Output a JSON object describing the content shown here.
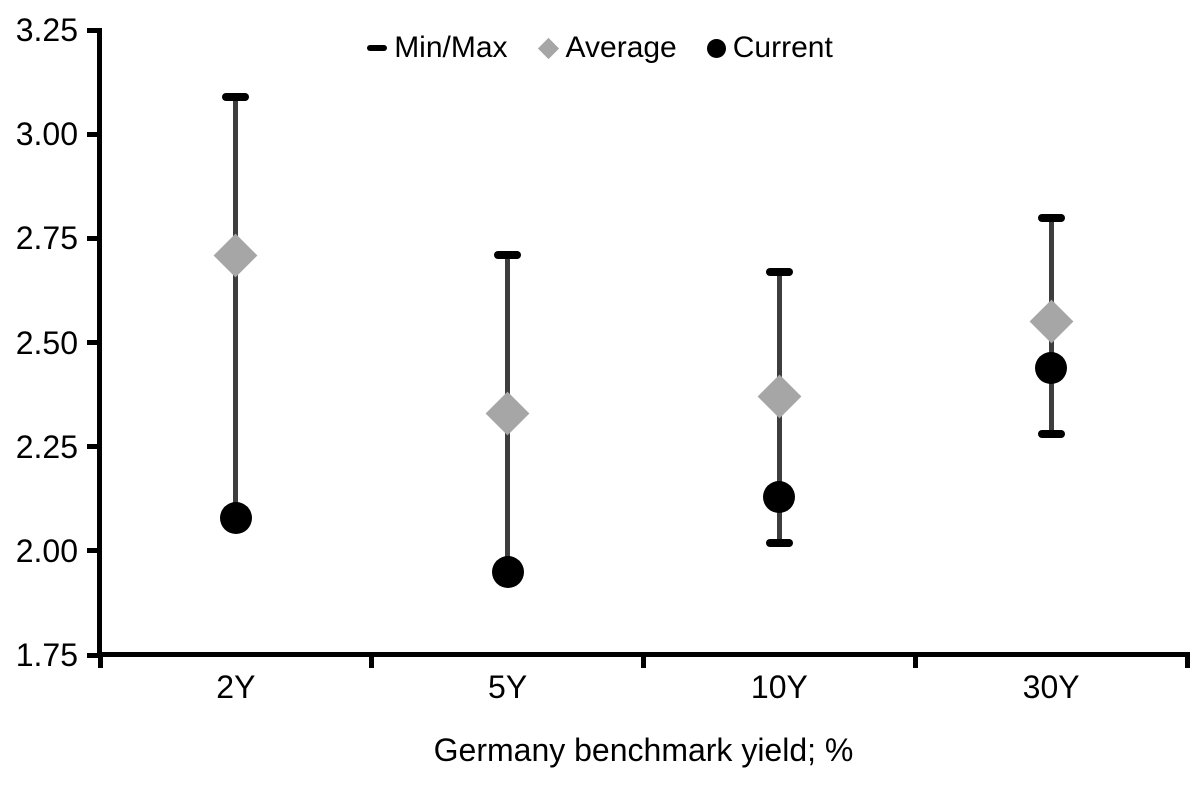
{
  "chart_data": {
    "type": "scatter",
    "title": "",
    "xlabel": "Germany benchmark yield; %",
    "ylabel": "",
    "categories": [
      "2Y",
      "5Y",
      "10Y",
      "30Y"
    ],
    "series": [
      {
        "name": "Min/Max",
        "role": "range",
        "min": [
          2.08,
          1.95,
          2.02,
          2.28
        ],
        "max": [
          3.09,
          2.71,
          2.67,
          2.8
        ]
      },
      {
        "name": "Average",
        "role": "point",
        "marker": "diamond",
        "values": [
          2.71,
          2.33,
          2.37,
          2.55
        ]
      },
      {
        "name": "Current",
        "role": "point",
        "marker": "circle",
        "values": [
          2.08,
          1.95,
          2.13,
          2.44
        ]
      }
    ],
    "ylim": [
      1.75,
      3.25
    ],
    "y_ticks": [
      "3.25",
      "3.00",
      "2.75",
      "2.50",
      "2.25",
      "2.00",
      "1.75"
    ],
    "x_ticks": [
      "2Y",
      "5Y",
      "10Y",
      "30Y"
    ],
    "legend_position": "top-center",
    "grid": false,
    "colors": {
      "range_line": "#3d3d3d",
      "cap": "#000000",
      "average": "#a6a6a6",
      "current": "#000000",
      "text": "#000000",
      "background": "#ffffff"
    }
  }
}
